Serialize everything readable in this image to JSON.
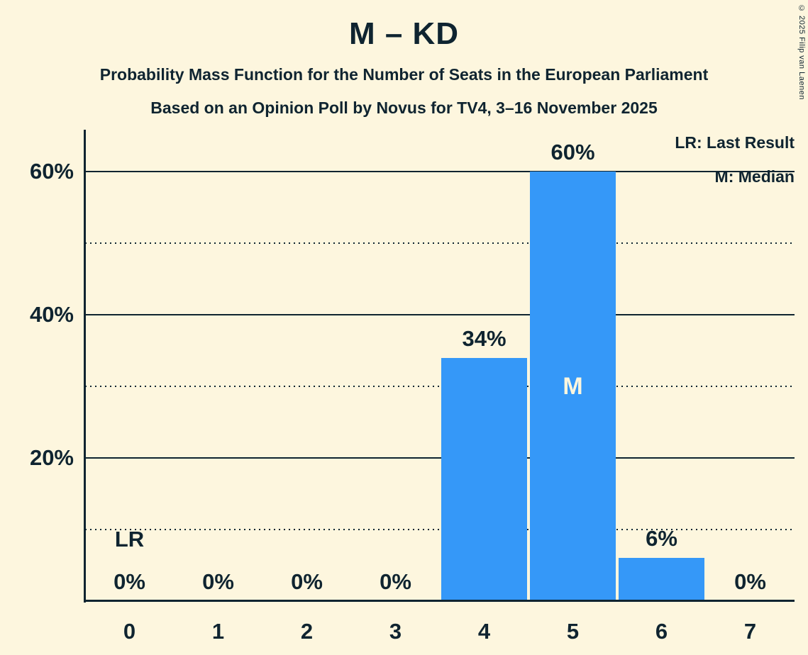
{
  "copyright": "© 2025 Filip van Laenen",
  "chart_data": {
    "type": "bar",
    "title": "M – KD",
    "subtitle1": "Probability Mass Function for the Number of Seats in the European Parliament",
    "subtitle2": "Based on an Opinion Poll by Novus for TV4, 3–16 November 2025",
    "legend": {
      "lr": "LR: Last Result",
      "m": "M: Median"
    },
    "categories": [
      "0",
      "1",
      "2",
      "3",
      "4",
      "5",
      "6",
      "7"
    ],
    "values": [
      0,
      0,
      0,
      0,
      34,
      60,
      6,
      0
    ],
    "bar_labels": [
      "0%",
      "0%",
      "0%",
      "0%",
      "34%",
      "60%",
      "6%",
      "0%"
    ],
    "y_axis": {
      "major_ticks": [
        {
          "pct": 20,
          "label": "20%"
        },
        {
          "pct": 40,
          "label": "40%"
        },
        {
          "pct": 60,
          "label": "60%"
        }
      ],
      "minor_ticks_pct": [
        10,
        30,
        50
      ],
      "range_pct": [
        0,
        66
      ]
    },
    "annotations": {
      "last_result": {
        "label": "LR",
        "category_index": 0
      },
      "median": {
        "label": "M",
        "category_index": 5
      }
    },
    "grid": "horizontal: solid major, dotted minor",
    "legend_position": "top-right",
    "colors": {
      "background": "#fdf6de",
      "bar": "#3598f8",
      "ink": "#0f2430",
      "median_text": "#fdf6de"
    }
  }
}
